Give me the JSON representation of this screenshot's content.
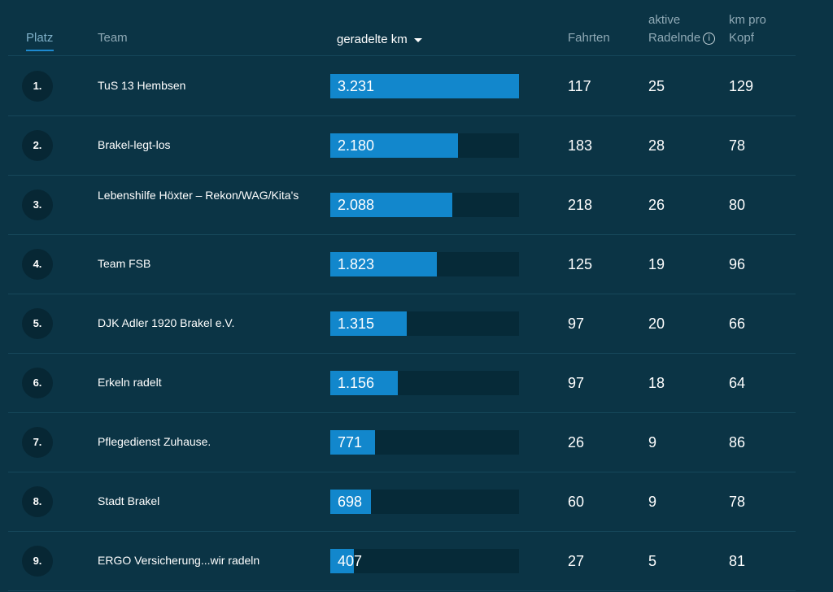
{
  "header": {
    "platz": "Platz",
    "team": "Team",
    "km": "geradelte km",
    "fahrten": "Fahrten",
    "aktive_line1": "aktive",
    "aktive_line2": "Radelnde",
    "kopf_line1": "km pro",
    "kopf_line2": "Kopf"
  },
  "colors": {
    "background": "#0b3445",
    "bar": "#1287cc",
    "bar_track": "#062a38",
    "active_tab_underline": "#1d8ad0"
  },
  "rows": [
    {
      "rank": "1.",
      "team": "TuS 13 Hembsen",
      "km": "3.231",
      "km_value": 3231,
      "fahrten": "117",
      "aktive": "25",
      "kopf": "129"
    },
    {
      "rank": "2.",
      "team": "Brakel-legt-los",
      "km": "2.180",
      "km_value": 2180,
      "fahrten": "183",
      "aktive": "28",
      "kopf": "78"
    },
    {
      "rank": "3.",
      "team": "Lebenshilfe Höxter – Rekon/WAG/Kita's",
      "km": "2.088",
      "km_value": 2088,
      "fahrten": "218",
      "aktive": "26",
      "kopf": "80"
    },
    {
      "rank": "4.",
      "team": "Team FSB",
      "km": "1.823",
      "km_value": 1823,
      "fahrten": "125",
      "aktive": "19",
      "kopf": "96"
    },
    {
      "rank": "5.",
      "team": "DJK Adler 1920 Brakel e.V.",
      "km": "1.315",
      "km_value": 1315,
      "fahrten": "97",
      "aktive": "20",
      "kopf": "66"
    },
    {
      "rank": "6.",
      "team": "Erkeln radelt",
      "km": "1.156",
      "km_value": 1156,
      "fahrten": "97",
      "aktive": "18",
      "kopf": "64"
    },
    {
      "rank": "7.",
      "team": "Pflegedienst Zuhause.",
      "km": "771",
      "km_value": 771,
      "fahrten": "26",
      "aktive": "9",
      "kopf": "86"
    },
    {
      "rank": "8.",
      "team": "Stadt Brakel",
      "km": "698",
      "km_value": 698,
      "fahrten": "60",
      "aktive": "9",
      "kopf": "78"
    },
    {
      "rank": "9.",
      "team": "ERGO Versicherung...wir radeln",
      "km": "407",
      "km_value": 407,
      "fahrten": "27",
      "aktive": "5",
      "kopf": "81"
    }
  ]
}
